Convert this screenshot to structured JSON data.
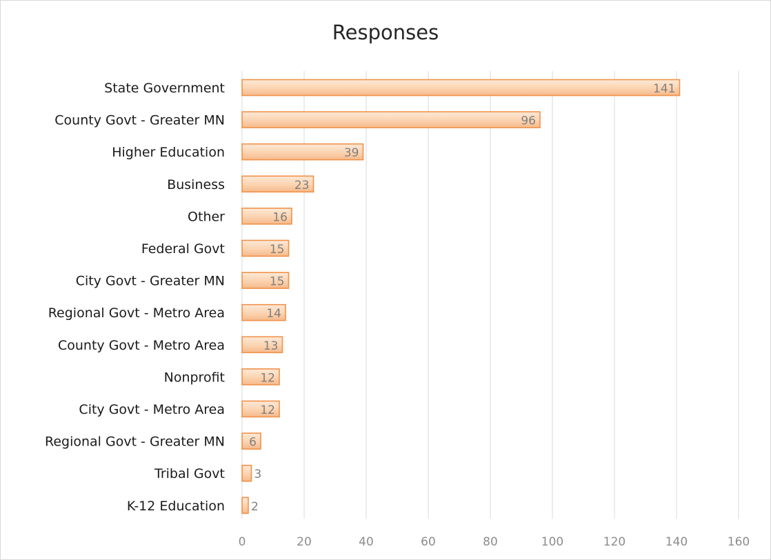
{
  "chart_data": {
    "type": "bar",
    "orientation": "horizontal",
    "title": "Responses",
    "xlabel": "",
    "ylabel": "",
    "xlim": [
      0,
      160
    ],
    "x_ticks": [
      "0",
      "20",
      "40",
      "60",
      "80",
      "100",
      "120",
      "140",
      "160"
    ],
    "grid": "vertical",
    "legend": "none",
    "categories": [
      "State Government",
      "County Govt - Greater MN",
      "Higher Education",
      "Business",
      "Other",
      "Federal Govt",
      "City Govt - Greater MN",
      "Regional Govt - Metro Area",
      "County Govt - Metro Area",
      "Nonprofit",
      "City Govt - Metro Area",
      "Regional Govt - Greater MN",
      "Tribal Govt",
      "K-12 Education"
    ],
    "values": [
      141,
      96,
      39,
      23,
      16,
      15,
      15,
      14,
      13,
      12,
      12,
      6,
      3,
      2
    ],
    "bar_fill": "#fbd7b6",
    "bar_stroke": "#f0914a"
  }
}
